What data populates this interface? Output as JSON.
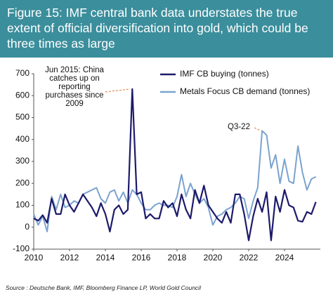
{
  "chart_data": {
    "type": "line",
    "title": "Figure 15: IMF central bank data understates the true extent of official diversification into gold, which could be three times as large",
    "x": [
      2010,
      2010.25,
      2010.5,
      2010.75,
      2011,
      2011.25,
      2011.5,
      2011.75,
      2012,
      2012.25,
      2012.5,
      2012.75,
      2013,
      2013.25,
      2013.5,
      2013.75,
      2014,
      2014.25,
      2014.5,
      2014.75,
      2015,
      2015.25,
      2015.5,
      2015.75,
      2016,
      2016.25,
      2016.5,
      2016.75,
      2017,
      2017.25,
      2017.5,
      2017.75,
      2018,
      2018.25,
      2018.5,
      2018.75,
      2019,
      2019.25,
      2019.5,
      2019.75,
      2020,
      2020.25,
      2020.5,
      2020.75,
      2021,
      2021.25,
      2021.5,
      2021.75,
      2022,
      2022.25,
      2022.5,
      2022.75,
      2023,
      2023.25,
      2023.5,
      2023.75,
      2024,
      2024.25,
      2024.5,
      2024.75,
      2025,
      2025.25,
      2025.5,
      2025.75
    ],
    "series": [
      {
        "name": "IMF CB buying (tonnes)",
        "color": "#1d1a6b",
        "values": [
          40,
          30,
          55,
          20,
          130,
          60,
          60,
          150,
          100,
          70,
          110,
          150,
          120,
          90,
          50,
          110,
          60,
          -20,
          80,
          100,
          60,
          80,
          630,
          150,
          160,
          40,
          60,
          40,
          40,
          120,
          90,
          110,
          50,
          150,
          80,
          40,
          170,
          110,
          190,
          100,
          70,
          40,
          20,
          70,
          20,
          150,
          150,
          60,
          -60,
          50,
          130,
          70,
          160,
          -60,
          140,
          70,
          170,
          100,
          90,
          30,
          25,
          70,
          60,
          115
        ]
      },
      {
        "name": "Metals Focus CB demand (tonnes)",
        "color": "#7ba3cf",
        "values": [
          60,
          10,
          50,
          -20,
          140,
          80,
          150,
          90,
          100,
          120,
          110,
          150,
          160,
          170,
          180,
          130,
          110,
          160,
          170,
          120,
          160,
          110,
          170,
          150,
          110,
          80,
          80,
          100,
          110,
          100,
          100,
          90,
          140,
          240,
          140,
          200,
          150,
          110,
          130,
          90,
          10,
          50,
          60,
          80,
          90,
          110,
          140,
          130,
          40,
          120,
          180,
          440,
          420,
          270,
          330,
          200,
          310,
          210,
          200,
          370,
          250,
          170,
          220,
          230
        ]
      }
    ],
    "xlim": [
      2010,
      2026
    ],
    "xticks": [
      2010,
      2012,
      2014,
      2016,
      2018,
      2020,
      2022,
      2024
    ],
    "ylim": [
      -100,
      700
    ],
    "yticks": [
      -100,
      0,
      100,
      200,
      300,
      400,
      500,
      600,
      700
    ],
    "grid": false,
    "legend": "upper right",
    "annotations": [
      {
        "text": "Jun 2015: China catches up on reporting purchases since 2009",
        "x": 2015.5,
        "y": 630
      },
      {
        "text": "Q3-22",
        "x": 2022.75,
        "y": 440
      }
    ],
    "source": "Source : Deutsche Bank, IMF, Bloomberg Finance LP, World Gold Council"
  }
}
